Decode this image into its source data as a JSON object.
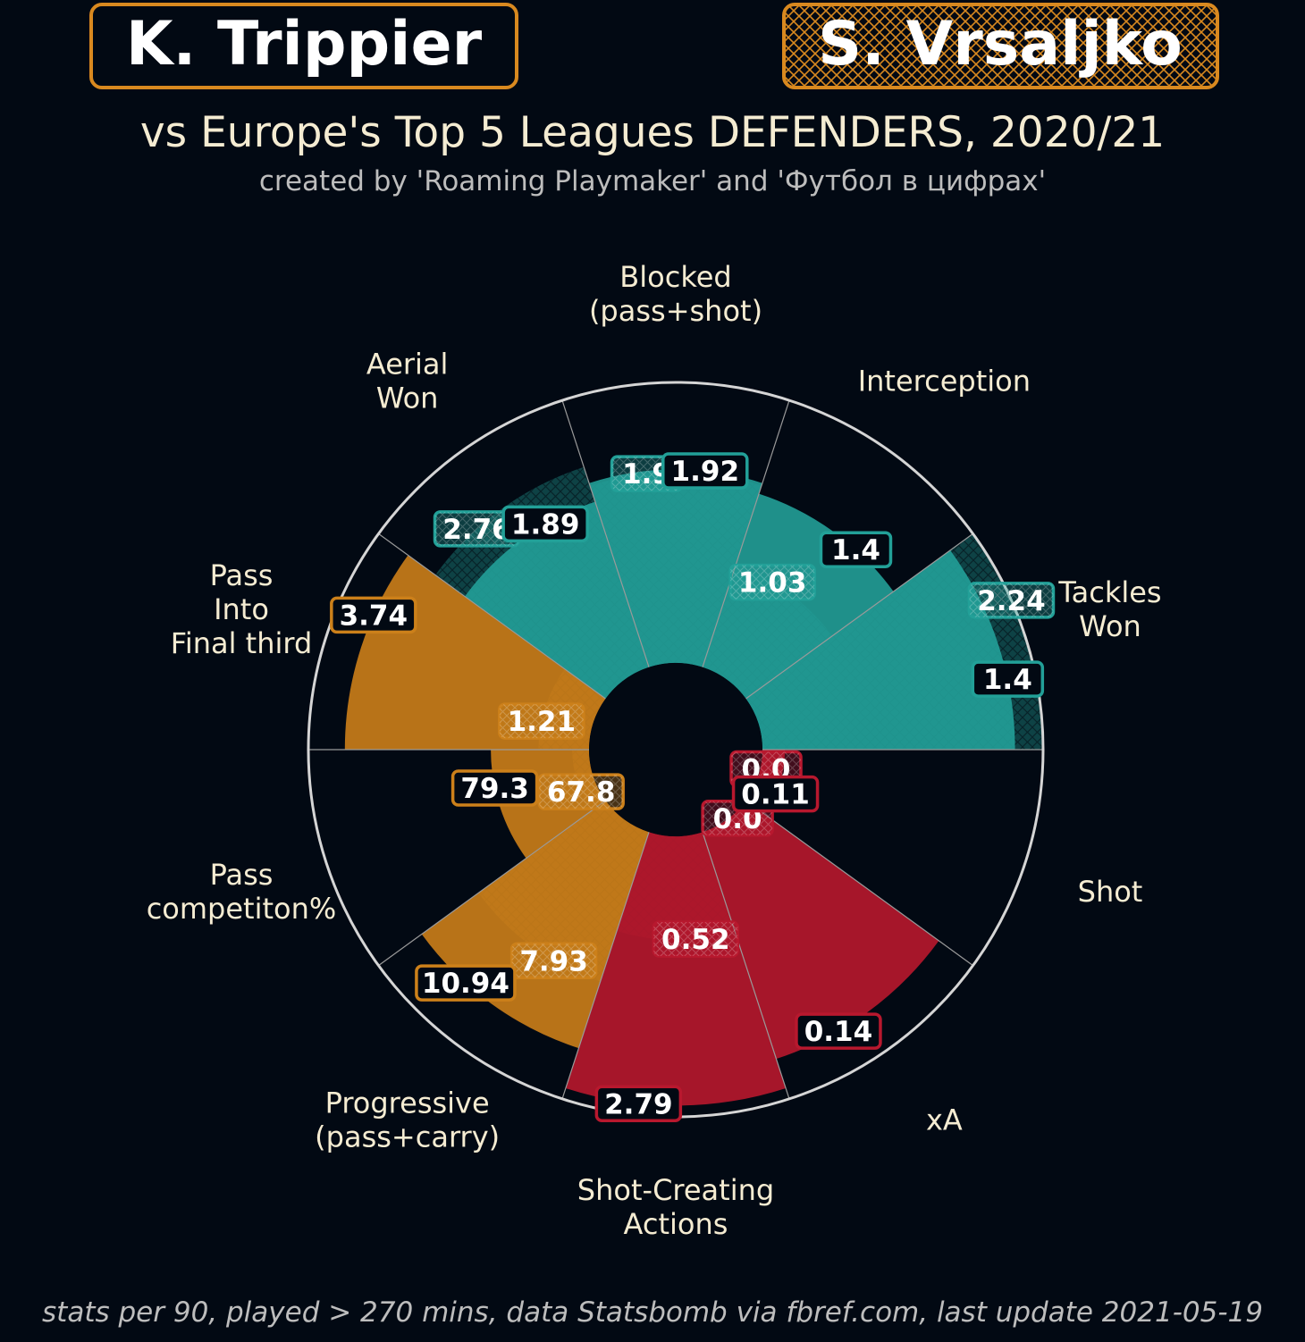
{
  "header": {
    "player1": "K. Trippier",
    "player2": "S. Vrsaljko",
    "subtitle": "vs Europe's Top 5 Leagues DEFENDERS, 2020/21",
    "credit": "created by 'Roaming Playmaker' and 'Футбол в цифрах'",
    "footer": "stats per 90, played > 270 mins, data Statsbomb via fbref.com, last update 2021-05-19"
  },
  "colors": {
    "background": "#020913",
    "frame": "#d9891f",
    "defending": "#22a098",
    "passing": "#cc801a",
    "attacking": "#b8182e",
    "text": "#f5ecd2",
    "credit_text": "#bdbdbd",
    "grid": "#d5d5d5"
  },
  "chart_data": {
    "type": "polar-bar",
    "scale": "percentile",
    "rlim": [
      0,
      100
    ],
    "legend": {
      "K. Trippier": "solid",
      "S. Vrsaljko": "hatched"
    },
    "categories": [
      {
        "label": "Tackles\nWon",
        "group": "defending",
        "p1_value": "1.4",
        "p2_value": "2.24",
        "p1_pct": 90,
        "p2_pct": 100
      },
      {
        "label": "Interception",
        "group": "defending",
        "p1_value": "1.4",
        "p2_value": "1.03",
        "p1_pct": 65,
        "p2_pct": 38
      },
      {
        "label": "Blocked\n(pass+shot)",
        "group": "defending",
        "p1_value": "1.92",
        "p2_value": "1.9",
        "p1_pct": 69,
        "p2_pct": 68
      },
      {
        "label": "Aerial\nWon",
        "group": "defending",
        "p1_value": "1.89",
        "p2_value": "2.76",
        "p1_pct": 62,
        "p2_pct": 75
      },
      {
        "label": "Pass\nInto\nFinal third",
        "group": "passing",
        "p1_value": "3.74",
        "p2_value": "1.21",
        "p1_pct": 87,
        "p2_pct": 18
      },
      {
        "label": "Pass\ncompetiton%",
        "group": "passing",
        "p1_value": "79.3",
        "p2_value": "67.8",
        "p1_pct": 35,
        "p2_pct": 6
      },
      {
        "label": "Progressive\n(pass+carry)",
        "group": "passing",
        "p1_value": "10.94",
        "p2_value": "7.93",
        "p1_pct": 81,
        "p2_pct": 56
      },
      {
        "label": "Shot-Creating\nActions",
        "group": "attacking",
        "p1_value": "2.79",
        "p2_value": "0.52",
        "p1_pct": 96,
        "p2_pct": 37
      },
      {
        "label": "xA",
        "group": "attacking",
        "p1_value": "0.14",
        "p2_value": "0.0",
        "p1_pct": 85,
        "p2_pct": 2
      },
      {
        "label": "Shot",
        "group": "attacking",
        "p1_value": "0.11",
        "p2_value": "0.0",
        "p1_pct": 8,
        "p2_pct": 2
      }
    ]
  }
}
